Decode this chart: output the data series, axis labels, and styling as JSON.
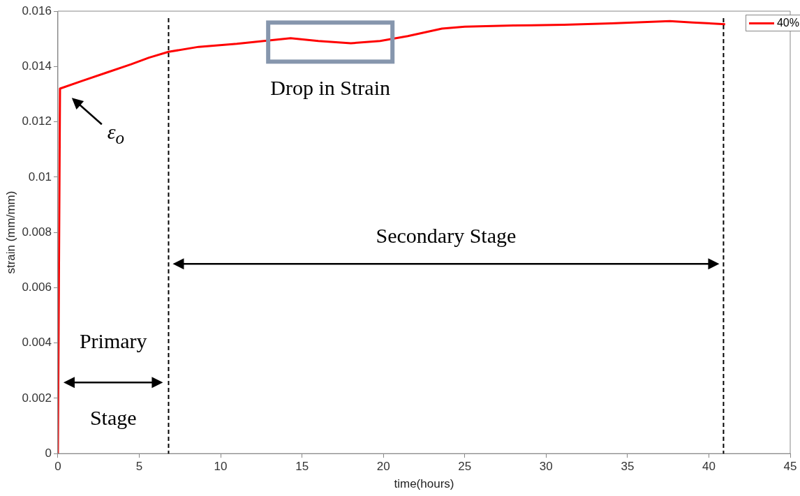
{
  "chart_data": {
    "type": "line",
    "xlabel": "time(hours)",
    "ylabel": "strain (mm/mm)",
    "xlim": [
      0,
      45
    ],
    "xticks": [
      0,
      5,
      10,
      15,
      20,
      25,
      30,
      35,
      40,
      45
    ],
    "ylim": [
      0,
      0.016
    ],
    "yticks": [
      0,
      0.002,
      0.004,
      0.006,
      0.008,
      0.01,
      0.012,
      0.014,
      0.016
    ],
    "grid": false,
    "legend": "top right",
    "marker": "none",
    "line_style": "solid",
    "series": [
      {
        "name": "40%",
        "color": "#ff0000",
        "x": [
          0,
          0.13,
          1.5,
          3,
          4.5,
          5.6,
          6.8,
          8.65,
          11,
          14.3,
          16,
          18,
          19.8,
          21.5,
          23.6,
          25,
          28,
          31.1,
          34,
          37.6,
          39,
          41
        ],
        "values": [
          0,
          0.0132,
          0.01348,
          0.01378,
          0.01408,
          0.01432,
          0.01453,
          0.01471,
          0.01482,
          0.01502,
          0.01492,
          0.01484,
          0.01492,
          0.0151,
          0.01537,
          0.01544,
          0.01548,
          0.01551,
          0.01556,
          0.01564,
          0.01559,
          0.01553
        ]
      }
    ],
    "ref_lines": [
      {
        "axis": "x",
        "value": 6.8,
        "color": "#000000",
        "line_style": "dashed"
      },
      {
        "axis": "x",
        "value": 40.9,
        "color": "#000000",
        "line_style": "dashed"
      }
    ],
    "annotations": [
      "Primary",
      "Stage",
      "Secondary Stage",
      "Drop in Strain",
      "ε$_{o}$"
    ]
  }
}
